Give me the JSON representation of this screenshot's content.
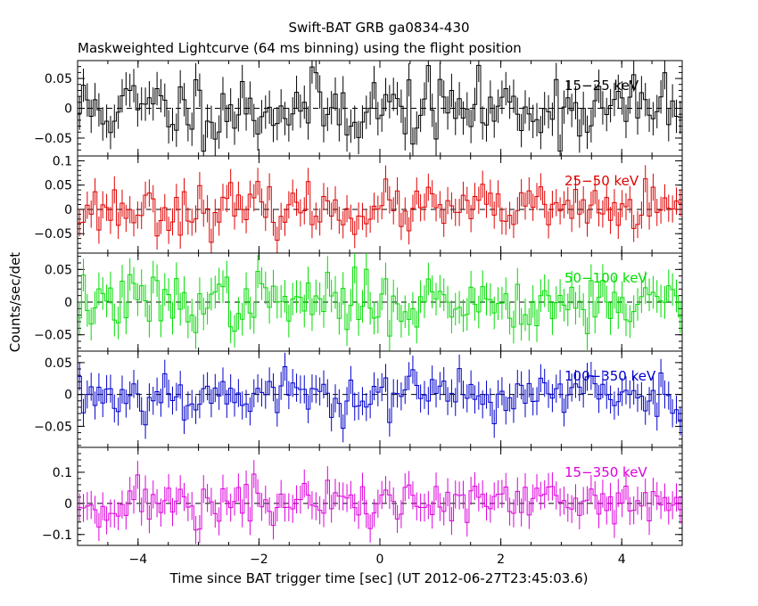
{
  "title_line1": "Swift-BAT GRB ga0834-430",
  "title_line2": "Maskweighted Lightcurve (64 ms binning) using the flight position",
  "ylabel": "Counts/sec/det",
  "xlabel": "Time since BAT trigger time [sec] (UT 2012-06-27T23:45:03.6)",
  "chart_data": {
    "type": "line",
    "xlim": [
      -5,
      5
    ],
    "x_ticks": [
      -4,
      -2,
      0,
      2,
      4
    ],
    "x_tick_labels": [
      "−4",
      "−2",
      "0",
      "2",
      "4"
    ],
    "bin_width_s": 0.064,
    "panels": [
      {
        "name": "15-25 keV",
        "label": "15−25 keV",
        "color": "#000000",
        "ylim": [
          -0.08,
          0.08
        ],
        "y_ticks": [
          -0.05,
          0,
          0.05
        ],
        "y_tick_labels": [
          "−0.05",
          "0",
          "0.05"
        ],
        "amplitude": 0.03,
        "error": 0.028,
        "seed": 11
      },
      {
        "name": "25-50 keV",
        "label": "25−50 keV",
        "color": "#e00000",
        "ylim": [
          -0.09,
          0.11
        ],
        "y_ticks": [
          -0.05,
          0,
          0.05,
          0.1
        ],
        "y_tick_labels": [
          "−0.05",
          "0",
          "0.05",
          "0.1"
        ],
        "amplitude": 0.025,
        "error": 0.028,
        "seed": 23
      },
      {
        "name": "50-100 keV",
        "label": "50−100 keV",
        "color": "#00dd00",
        "ylim": [
          -0.075,
          0.075
        ],
        "y_ticks": [
          -0.05,
          0,
          0.05
        ],
        "y_tick_labels": [
          "−0.05",
          "0",
          "0.05"
        ],
        "amplitude": 0.022,
        "error": 0.025,
        "seed": 37
      },
      {
        "name": "100-350 keV",
        "label": "100−350 keV",
        "color": "#0000cc",
        "ylim": [
          -0.083,
          0.068
        ],
        "y_ticks": [
          -0.05,
          0,
          0.05
        ],
        "y_tick_labels": [
          "−0.05",
          "0",
          "0.05"
        ],
        "amplitude": 0.02,
        "error": 0.022,
        "seed": 53
      },
      {
        "name": "15-350 keV",
        "label": "15−350 keV",
        "color": "#dd00dd",
        "ylim": [
          -0.135,
          0.18
        ],
        "y_ticks": [
          -0.1,
          0,
          0.1
        ],
        "y_tick_labels": [
          "−0.1",
          "0",
          "0.1"
        ],
        "amplitude": 0.04,
        "error": 0.045,
        "seed": 71
      }
    ]
  }
}
